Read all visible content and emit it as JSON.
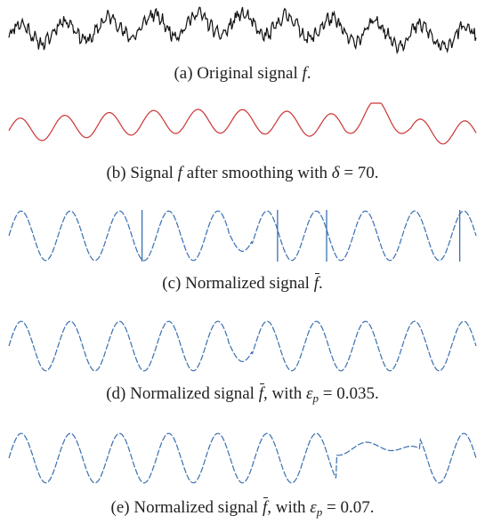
{
  "chart_data": [
    {
      "type": "line",
      "caption": {
        "prefix": "(a) Original signal ",
        "symbol": "f",
        "suffix": "."
      },
      "color": "#111111",
      "dashed": false,
      "spikes": [],
      "signal": {
        "seed": 11,
        "periods": 10.5,
        "amp": 0.22,
        "noise": 0.55,
        "trend": 0.25,
        "style": "noisy"
      }
    },
    {
      "type": "line",
      "caption": {
        "prefix": "(b) Signal ",
        "symbol": "f",
        "middle": " after smoothing with ",
        "greek": "δ",
        "tail": " = 70."
      },
      "color": "#cc3333",
      "dashed": false,
      "spikes": [],
      "signal": {
        "seed": 11,
        "periods": 10.5,
        "amp": 0.55,
        "noise": 0.0,
        "trend": 0.25,
        "style": "smooth"
      }
    },
    {
      "type": "line",
      "caption": {
        "prefix": "(c) Normalized signal ",
        "symbol": "f",
        "suffix": "."
      },
      "color": "#3a6fb0",
      "dashed": true,
      "spikes": [
        0.285,
        0.575,
        0.68,
        0.965
      ],
      "signal": {
        "seed": 11,
        "periods": 9.5,
        "amp": 1.0,
        "noise": 0.0,
        "trend": 0.0,
        "style": "normalized"
      }
    },
    {
      "type": "line",
      "caption": {
        "prefix": "(d) Normalized signal ",
        "symbol": "f",
        "middle": ", with ",
        "greek": "ε",
        "sub": "p",
        "tail": " = 0.035."
      },
      "color": "#3a6fb0",
      "dashed": true,
      "spikes": [],
      "signal": {
        "seed": 11,
        "periods": 9.5,
        "amp": 1.0,
        "noise": 0.0,
        "trend": 0.0,
        "style": "normalized"
      }
    },
    {
      "type": "line",
      "caption": {
        "prefix": "(e) Normalized signal ",
        "symbol": "f",
        "middle": ", with ",
        "greek": "ε",
        "sub": "p",
        "tail": " = 0.07."
      },
      "color": "#3a6fb0",
      "dashed": true,
      "spikes": [],
      "signal": {
        "seed": 11,
        "periods": 9.5,
        "amp": 1.0,
        "noise": 0.0,
        "trend": 0.0,
        "style": "flattened"
      }
    }
  ]
}
